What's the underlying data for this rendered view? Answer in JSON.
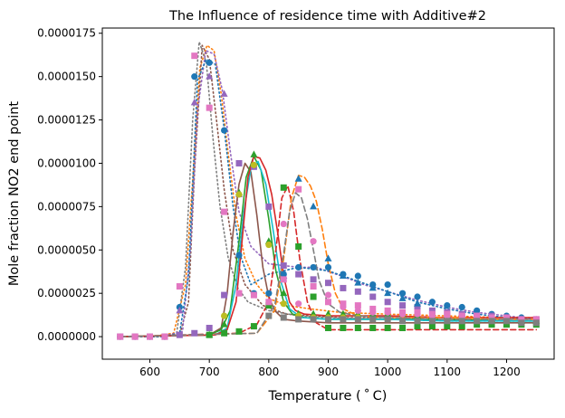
{
  "chart_data": {
    "type": "line",
    "title": "The Influence of residence time with Additive#2",
    "xlabel": "Temperature ($^\\circ$C)",
    "xlabel_display": "Temperature ( ˚ C)",
    "ylabel": "Mole fraction NO2 end point",
    "xlim": [
      520,
      1280
    ],
    "ylim": [
      -1.3e-06,
      1.78e-05
    ],
    "xticks": [
      600,
      700,
      800,
      900,
      1000,
      1100,
      1200
    ],
    "xtick_labels": [
      "600",
      "700",
      "800",
      "900",
      "1000",
      "1100",
      "1200"
    ],
    "yticks": [
      0.0,
      2.5e-06,
      5e-06,
      7.5e-06,
      1e-05,
      1.25e-05,
      1.5e-05,
      1.75e-05
    ],
    "ytick_labels": [
      "0.0000000",
      "0.0000025",
      "0.0000050",
      "0.0000075",
      "0.0000100",
      "0.0000125",
      "0.0000150",
      "0.0000175"
    ],
    "grid": false,
    "series": [
      {
        "kind": "line",
        "style": "dotted",
        "color": "#ff7f0e",
        "x": [
          550,
          600,
          640,
          660,
          672,
          684,
          696,
          708,
          720,
          732,
          745,
          760,
          780,
          800,
          830,
          870,
          920,
          1000,
          1100,
          1200,
          1250
        ],
        "y": [
          0,
          0,
          2e-07,
          3e-06,
          9e-06,
          1.55e-05,
          1.68e-05,
          1.65e-05,
          1.4e-05,
          1.05e-05,
          7e-06,
          4.5e-06,
          3e-06,
          2.2e-06,
          1.8e-06,
          1.6e-06,
          1.4e-06,
          1.3e-06,
          1.2e-06,
          1.1e-06,
          1.1e-06
        ]
      },
      {
        "kind": "line",
        "style": "dotted",
        "color": "#8c564b",
        "x": [
          550,
          620,
          650,
          665,
          675,
          688,
          700,
          712,
          725,
          740,
          760,
          790,
          830,
          870,
          920,
          1000,
          1100,
          1200,
          1250
        ],
        "y": [
          0,
          0,
          1e-07,
          2e-06,
          9.5e-06,
          1.68e-05,
          1.6e-05,
          1.25e-05,
          8.5e-06,
          5e-06,
          3e-06,
          1.8e-06,
          1.3e-06,
          1.2e-06,
          1.1e-06,
          1.1e-06,
          1e-06,
          1e-06,
          1e-06
        ]
      },
      {
        "kind": "line",
        "style": "dotted",
        "color": "#7f7f7f",
        "x": [
          550,
          620,
          645,
          660,
          672,
          683,
          695,
          706,
          718,
          732,
          748,
          765,
          800,
          850,
          900,
          1000,
          1100,
          1200,
          1250
        ],
        "y": [
          0,
          0,
          2e-07,
          4e-06,
          1.25e-05,
          1.7e-05,
          1.58e-05,
          1.15e-05,
          7.5e-06,
          4.5e-06,
          2.8e-06,
          2e-06,
          1.5e-06,
          1.2e-06,
          1.1e-06,
          1e-06,
          9e-07,
          9e-07,
          9e-07
        ]
      },
      {
        "kind": "line",
        "style": "dotted",
        "color": "#9467bd",
        "x": [
          550,
          620,
          655,
          668,
          680,
          694,
          708,
          722,
          736,
          750,
          770,
          800,
          850,
          880,
          905,
          930,
          960,
          1000,
          1050,
          1100,
          1150,
          1200,
          1250
        ],
        "y": [
          0,
          0,
          3e-07,
          5e-06,
          1.3e-05,
          1.65e-05,
          1.63e-05,
          1.42e-05,
          1.05e-05,
          7.2e-06,
          5.2e-06,
          4.2e-06,
          4e-06,
          4e-06,
          3.7e-06,
          3.4e-06,
          3e-06,
          2.6e-06,
          2.1e-06,
          1.7e-06,
          1.4e-06,
          1.2e-06,
          1e-06
        ]
      },
      {
        "kind": "line",
        "style": "dotted",
        "color": "#1f77b4",
        "x": [
          550,
          620,
          650,
          665,
          680,
          695,
          710,
          725,
          740,
          752,
          770,
          800,
          850,
          900,
          950,
          1000,
          1050,
          1100,
          1150,
          1200,
          1250
        ],
        "y": [
          0,
          0,
          2e-07,
          3.5e-06,
          1.48e-05,
          1.6e-05,
          1.57e-05,
          1.2e-05,
          7.5e-06,
          4.7e-06,
          3e-06,
          3.6e-06,
          4e-06,
          3.8e-06,
          3.2e-06,
          2.6e-06,
          2e-06,
          1.6e-06,
          1.3e-06,
          1.1e-06,
          1e-06
        ]
      },
      {
        "kind": "line",
        "style": "solid",
        "color": "#8c564b",
        "x": [
          550,
          700,
          720,
          730,
          740,
          750,
          760,
          770,
          780,
          790,
          800,
          810,
          825,
          850,
          900,
          1000,
          1100,
          1200,
          1250
        ],
        "y": [
          0,
          1e-07,
          5e-07,
          2.5e-06,
          6e-06,
          8.8e-06,
          1e-05,
          9.5e-06,
          7e-06,
          4e-06,
          2.3e-06,
          1.5e-06,
          1e-06,
          9e-07,
          8e-07,
          8e-07,
          8e-07,
          8e-07,
          8e-07
        ]
      },
      {
        "kind": "line",
        "style": "solid",
        "color": "#2ca02c",
        "x": [
          550,
          700,
          720,
          735,
          750,
          762,
          775,
          787,
          800,
          812,
          825,
          840,
          860,
          900,
          1000,
          1100,
          1200,
          1250
        ],
        "y": [
          0,
          1e-07,
          4e-07,
          1.5e-06,
          5.5e-06,
          9.2e-06,
          1.04e-05,
          9.6e-06,
          6.8e-06,
          3.8e-06,
          2e-06,
          1.3e-06,
          1.1e-06,
          1e-06,
          1e-06,
          1e-06,
          9e-07,
          9e-07
        ]
      },
      {
        "kind": "line",
        "style": "solid",
        "color": "#17becf",
        "x": [
          550,
          710,
          730,
          745,
          758,
          770,
          782,
          795,
          808,
          820,
          835,
          855,
          900,
          1000,
          1100,
          1200,
          1250
        ],
        "y": [
          0,
          1e-07,
          5e-07,
          3e-06,
          7.2e-06,
          9.7e-06,
          1.01e-05,
          8.8e-06,
          6e-06,
          3.2e-06,
          1.6e-06,
          1.1e-06,
          1e-06,
          1e-06,
          9e-07,
          9e-07,
          9e-07
        ]
      },
      {
        "kind": "line",
        "style": "solid",
        "color": "#d62728",
        "x": [
          550,
          710,
          730,
          745,
          755,
          765,
          775,
          785,
          795,
          805,
          815,
          825,
          835,
          845,
          860,
          900,
          1000,
          1100,
          1200,
          1250
        ],
        "y": [
          0,
          1e-07,
          4e-07,
          2e-06,
          5.5e-06,
          9.2e-06,
          1.04e-05,
          1.03e-05,
          9.6e-06,
          8.2e-06,
          6e-06,
          3.5e-06,
          2e-06,
          1.5e-06,
          1.3e-06,
          1.2e-06,
          1.2e-06,
          1.1e-06,
          1.1e-06,
          1.1e-06
        ]
      },
      {
        "kind": "line",
        "style": "dashed",
        "color": "#d62728",
        "x": [
          550,
          750,
          780,
          800,
          812,
          822,
          832,
          842,
          852,
          865,
          880,
          900,
          1000,
          1100,
          1200,
          1250
        ],
        "y": [
          0,
          2e-07,
          7e-07,
          2e-06,
          5e-06,
          8e-06,
          8.7e-06,
          7.2e-06,
          4.5e-06,
          2e-06,
          8e-07,
          4e-07,
          4e-07,
          4e-07,
          4e-07,
          4e-07
        ]
      },
      {
        "kind": "line",
        "style": "dashed",
        "color": "#ff7f0e",
        "x": [
          550,
          780,
          810,
          825,
          838,
          850,
          860,
          870,
          880,
          890,
          900,
          912,
          925,
          950,
          1000,
          1100,
          1200,
          1250
        ],
        "y": [
          0,
          2e-07,
          1.5e-06,
          4.5e-06,
          8e-06,
          9.3e-06,
          9.2e-06,
          8.7e-06,
          7.8e-06,
          6.2e-06,
          4.2e-06,
          2.5e-06,
          1.6e-06,
          1.2e-06,
          1.1e-06,
          1.1e-06,
          1e-06,
          1e-06
        ]
      },
      {
        "kind": "line",
        "style": "dashed",
        "color": "#7f7f7f",
        "x": [
          550,
          780,
          810,
          825,
          835,
          845,
          855,
          865,
          875,
          885,
          900,
          920,
          950,
          1000,
          1100,
          1200,
          1250
        ],
        "y": [
          0,
          2e-07,
          1.8e-06,
          4.8e-06,
          7.2e-06,
          8.3e-06,
          8e-06,
          6.8e-06,
          5e-06,
          3.2e-06,
          1.9e-06,
          1.4e-06,
          1.2e-06,
          1.1e-06,
          1e-06,
          1e-06,
          1e-06
        ]
      },
      {
        "kind": "markers",
        "marker": "circle",
        "color": "#1f77b4",
        "x": [
          550,
          575,
          600,
          625,
          650,
          675,
          700,
          725,
          750,
          775,
          800,
          825,
          850,
          875,
          900,
          925,
          950,
          975,
          1000,
          1025,
          1050,
          1075,
          1100,
          1125,
          1150,
          1175,
          1200,
          1225,
          1250
        ],
        "y": [
          0,
          0,
          0,
          0,
          1.7e-06,
          1.5e-05,
          1.58e-05,
          1.19e-05,
          4.7e-06,
          2.5e-06,
          2.5e-06,
          3.6e-06,
          4e-06,
          4e-06,
          4e-06,
          3.6e-06,
          3.5e-06,
          3e-06,
          3e-06,
          2.5e-06,
          2.3e-06,
          2e-06,
          1.8e-06,
          1.7e-06,
          1.5e-06,
          1.3e-06,
          1.2e-06,
          1.1e-06,
          1e-06
        ]
      },
      {
        "kind": "markers",
        "marker": "square",
        "color": "#9467bd",
        "x": [
          550,
          575,
          600,
          625,
          650,
          675,
          700,
          725,
          750,
          775,
          800,
          825,
          850,
          875,
          900,
          925,
          950,
          975,
          1000,
          1025,
          1050,
          1075,
          1100,
          1125,
          1150,
          1175,
          1200,
          1225,
          1250
        ],
        "y": [
          0,
          0,
          0,
          0,
          1e-07,
          2e-07,
          5e-07,
          2.4e-06,
          1e-05,
          9.8e-06,
          7.5e-06,
          4.1e-06,
          3.6e-06,
          3.3e-06,
          3.1e-06,
          2.8e-06,
          2.6e-06,
          2.3e-06,
          2e-06,
          1.8e-06,
          1.7e-06,
          1.5e-06,
          1.4e-06,
          1.3e-06,
          1.2e-06,
          1.2e-06,
          1.1e-06,
          1e-06,
          1e-06
        ]
      },
      {
        "kind": "markers",
        "marker": "triangle",
        "color": "#9467bd",
        "x": [
          650,
          675,
          700,
          725,
          750
        ],
        "y": [
          1.5e-06,
          1.35e-05,
          1.5e-05,
          1.4e-05,
          8.2e-06
        ]
      },
      {
        "kind": "markers",
        "marker": "triangle",
        "color": "#1f77b4",
        "x": [
          825,
          850,
          875,
          900,
          925,
          950,
          975,
          1000,
          1025,
          1050
        ],
        "y": [
          3.5e-06,
          9.1e-06,
          7.5e-06,
          4.5e-06,
          3.5e-06,
          3.1e-06,
          2.8e-06,
          2.5e-06,
          2.2e-06,
          1.9e-06
        ]
      },
      {
        "kind": "markers",
        "marker": "triangle",
        "color": "#2ca02c",
        "x": [
          700,
          725,
          750,
          775,
          800,
          825,
          850,
          875,
          900,
          925,
          950,
          975,
          1000,
          1025,
          1050,
          1075,
          1100,
          1125,
          1150,
          1175,
          1200,
          1225,
          1250
        ],
        "y": [
          1e-07,
          7e-07,
          8.3e-06,
          1.05e-05,
          5.5e-06,
          2.5e-06,
          1.3e-06,
          1.3e-06,
          1.3e-06,
          1.3e-06,
          1.3e-06,
          1.3e-06,
          1.3e-06,
          1.3e-06,
          1.2e-06,
          1.2e-06,
          1.2e-06,
          1.1e-06,
          1.1e-06,
          1e-06,
          1e-06,
          9e-07,
          9e-07
        ]
      },
      {
        "kind": "markers",
        "marker": "square",
        "color": "#2ca02c",
        "x": [
          700,
          725,
          750,
          775,
          800,
          825,
          850,
          875,
          900,
          925,
          950,
          975,
          1000,
          1025,
          1050,
          1075,
          1100,
          1125,
          1150,
          1175,
          1200,
          1225,
          1250
        ],
        "y": [
          1e-07,
          2e-07,
          3e-07,
          6e-07,
          1.8e-06,
          8.6e-06,
          5.2e-06,
          2.3e-06,
          5e-07,
          5e-07,
          5e-07,
          5e-07,
          5e-07,
          5e-07,
          6e-07,
          6e-07,
          6e-07,
          6e-07,
          7e-07,
          7e-07,
          7e-07,
          7e-07,
          7e-07
        ]
      },
      {
        "kind": "markers",
        "marker": "circle",
        "color": "#bcbd22",
        "x": [
          725,
          750,
          775,
          800,
          825,
          850,
          875,
          900,
          925,
          950,
          975,
          1000
        ],
        "y": [
          1.2e-06,
          8.2e-06,
          9.9e-06,
          5.3e-06,
          1.9e-06,
          1.2e-06,
          1.1e-06,
          1.1e-06,
          1.1e-06,
          1.1e-06,
          1e-06,
          1e-06
        ]
      },
      {
        "kind": "markers",
        "marker": "square",
        "color": "#e377c2",
        "x": [
          550,
          575,
          600,
          625,
          650,
          675,
          700,
          725,
          750,
          775,
          800,
          825,
          850,
          875,
          900,
          925,
          950,
          975,
          1000,
          1025,
          1050,
          1075,
          1100,
          1125,
          1150,
          1175,
          1200,
          1225,
          1250
        ],
        "y": [
          0,
          0,
          0,
          0,
          2.9e-06,
          1.62e-05,
          1.32e-05,
          7.2e-06,
          2.5e-06,
          2.4e-06,
          2e-06,
          3.3e-06,
          8.5e-06,
          2.9e-06,
          2e-06,
          1.9e-06,
          1.8e-06,
          1.6e-06,
          1.5e-06,
          1.4e-06,
          1.4e-06,
          1.3e-06,
          1.3e-06,
          1.2e-06,
          1.2e-06,
          1.1e-06,
          1.1e-06,
          1e-06,
          1e-06
        ]
      },
      {
        "kind": "markers",
        "marker": "circle",
        "color": "#e377c2",
        "x": [
          825,
          850,
          875,
          900,
          925,
          950,
          975,
          1000,
          1025,
          1050,
          1075,
          1100,
          1125,
          1150,
          1175,
          1200,
          1225,
          1250
        ],
        "y": [
          6.5e-06,
          1.9e-06,
          5.5e-06,
          2.4e-06,
          1.7e-06,
          1.5e-06,
          1.4e-06,
          1.4e-06,
          1.3e-06,
          1.3e-06,
          1.2e-06,
          1.2e-06,
          1.2e-06,
          1.1e-06,
          1.1e-06,
          1.1e-06,
          1e-06,
          1e-06
        ]
      },
      {
        "kind": "markers",
        "marker": "square",
        "color": "#7f7f7f",
        "x": [
          800,
          825,
          850,
          875,
          900,
          925,
          950,
          975,
          1000,
          1025,
          1050,
          1075,
          1100,
          1125,
          1150,
          1175,
          1200,
          1225,
          1250
        ],
        "y": [
          1.2e-06,
          1.1e-06,
          1e-06,
          1e-06,
          1e-06,
          1e-06,
          1e-06,
          1e-06,
          1e-06,
          9e-07,
          9e-07,
          9e-07,
          9e-07,
          9e-07,
          9e-07,
          9e-07,
          9e-07,
          8e-07,
          8e-07
        ]
      }
    ]
  }
}
